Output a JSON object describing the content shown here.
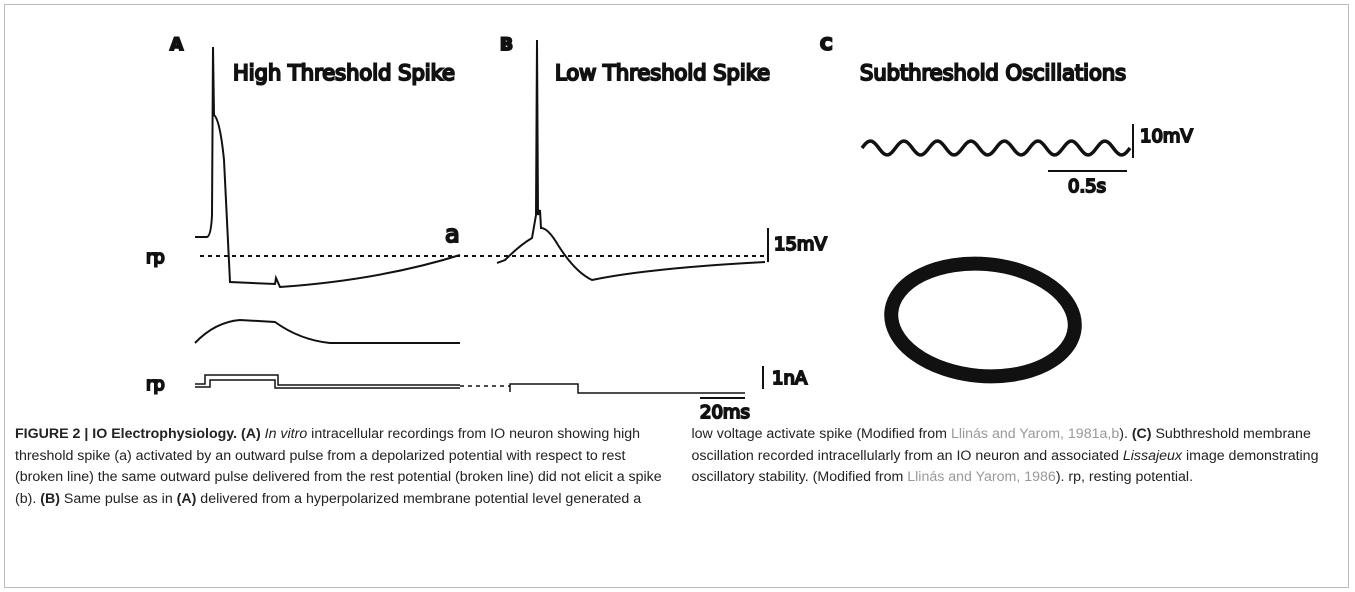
{
  "panels": [
    {
      "label": "A",
      "title": "High Threshold Spike"
    },
    {
      "label": "B",
      "title": "Low Threshold Spike"
    },
    {
      "label": "C",
      "title": "Subthreshold Oscillations"
    }
  ],
  "annotations": {
    "spike_a": "a",
    "rp_voltage": "rp",
    "rp_current": "rp",
    "scale_voltage": "15mV",
    "scale_current": "1nA",
    "scale_time": "20ms",
    "scale_osc_voltage": "10mV",
    "scale_osc_time": "0.5s"
  },
  "caption": [
    {
      "style": "bold",
      "text": "FIGURE 2 | IO Electrophysiology. (A) "
    },
    {
      "style": "italic",
      "text": "In vitro"
    },
    {
      "style": "normal",
      "text": " intracellular recordings from IO neuron showing high threshold spike (a) activated by an outward pulse from a depolarized potential with respect to rest (broken line) the same outward pulse delivered from the rest potential (broken line) did not elicit a spike (b). "
    },
    {
      "style": "bold",
      "text": "(B)"
    },
    {
      "style": "normal",
      "text": " Same pulse as in "
    },
    {
      "style": "bold",
      "text": "(A)"
    },
    {
      "style": "normal",
      "text": " delivered from a hyperpolarized membrane potential level generated a low voltage activate spike (Modified from "
    },
    {
      "style": "link",
      "text": "Llinás and Yarom, 1981a,b"
    },
    {
      "style": "normal",
      "text": "). "
    },
    {
      "style": "bold",
      "text": "(C)"
    },
    {
      "style": "normal",
      "text": " Subthreshold membrane oscillation recorded intracellularly from an IO neuron and associated "
    },
    {
      "style": "italic",
      "text": "Lissajeux"
    },
    {
      "style": "normal",
      "text": " image demonstrating oscillatory stability. (Modified from "
    },
    {
      "style": "link",
      "text": "Llinás and Yarom, 1986"
    },
    {
      "style": "normal",
      "text": "). rp, resting potential."
    }
  ]
}
